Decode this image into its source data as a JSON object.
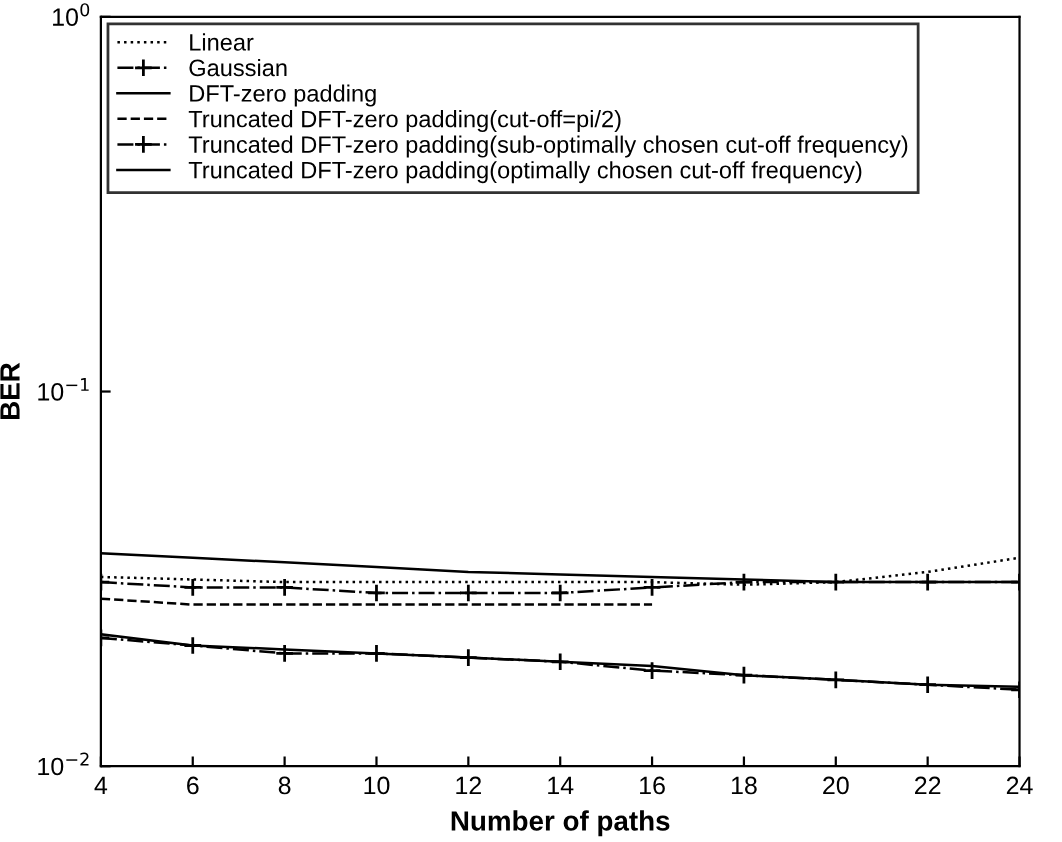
{
  "chart_data": {
    "type": "line",
    "xlabel": "Number of paths",
    "ylabel": "BER",
    "x": [
      4,
      6,
      8,
      10,
      12,
      14,
      16,
      18,
      20,
      22,
      24
    ],
    "series": [
      {
        "name": "Linear",
        "color": "#000000",
        "line_style": "dotted",
        "marker": "none",
        "values": [
          0.032,
          0.0315,
          0.031,
          0.031,
          0.031,
          0.031,
          0.031,
          0.0305,
          0.031,
          0.033,
          0.036
        ]
      },
      {
        "name": "Gaussian",
        "color": "#000000",
        "line_style": "dashdot",
        "marker": "cross",
        "values": [
          0.031,
          0.03,
          0.03,
          0.029,
          0.029,
          0.029,
          0.03,
          0.031,
          0.031,
          0.031,
          0.031
        ]
      },
      {
        "name": "DFT-zero padding",
        "color": "#000000",
        "line_style": "solid",
        "marker": "none",
        "values": [
          0.037,
          0.036,
          0.035,
          0.034,
          0.033,
          0.0325,
          0.032,
          0.0315,
          0.031,
          0.031,
          0.031
        ]
      },
      {
        "name": "Truncated DFT-zero padding(cut-off=pi/2)",
        "color": "#000000",
        "line_style": "dashed",
        "marker": "none",
        "values": [
          0.028,
          0.027,
          0.027,
          0.027,
          0.027,
          0.027,
          0.027,
          null,
          null,
          null,
          null
        ]
      },
      {
        "name": "Truncated DFT-zero padding(sub-optimally chosen cut-off frequency)",
        "color": "#000000",
        "line_style": "dashdot",
        "marker": "cross",
        "values": [
          0.022,
          0.021,
          0.02,
          0.02,
          0.0195,
          0.019,
          0.018,
          0.0175,
          0.017,
          0.0165,
          0.016
        ]
      },
      {
        "name": "Truncated DFT-zero padding(optimally chosen cut-off frequency)",
        "color": "#000000",
        "line_style": "solid",
        "marker": "none",
        "values": [
          0.0225,
          0.021,
          0.0205,
          0.02,
          0.0195,
          0.019,
          0.0185,
          0.0175,
          0.017,
          0.0165,
          0.0163
        ]
      }
    ],
    "log": "y",
    "xlim": [
      4,
      24
    ],
    "xticks": [
      4,
      6,
      8,
      10,
      12,
      14,
      16,
      18,
      20,
      22,
      24
    ],
    "ylim": [
      0.01,
      1
    ],
    "yticks": [
      {
        "value": 0.01,
        "label": "10$^{−2}$"
      },
      {
        "value": 0.1,
        "label": "10$^{−1}$"
      },
      {
        "value": 1,
        "label": "10$^{0}$"
      }
    ],
    "grid": false,
    "legend": "top left"
  }
}
